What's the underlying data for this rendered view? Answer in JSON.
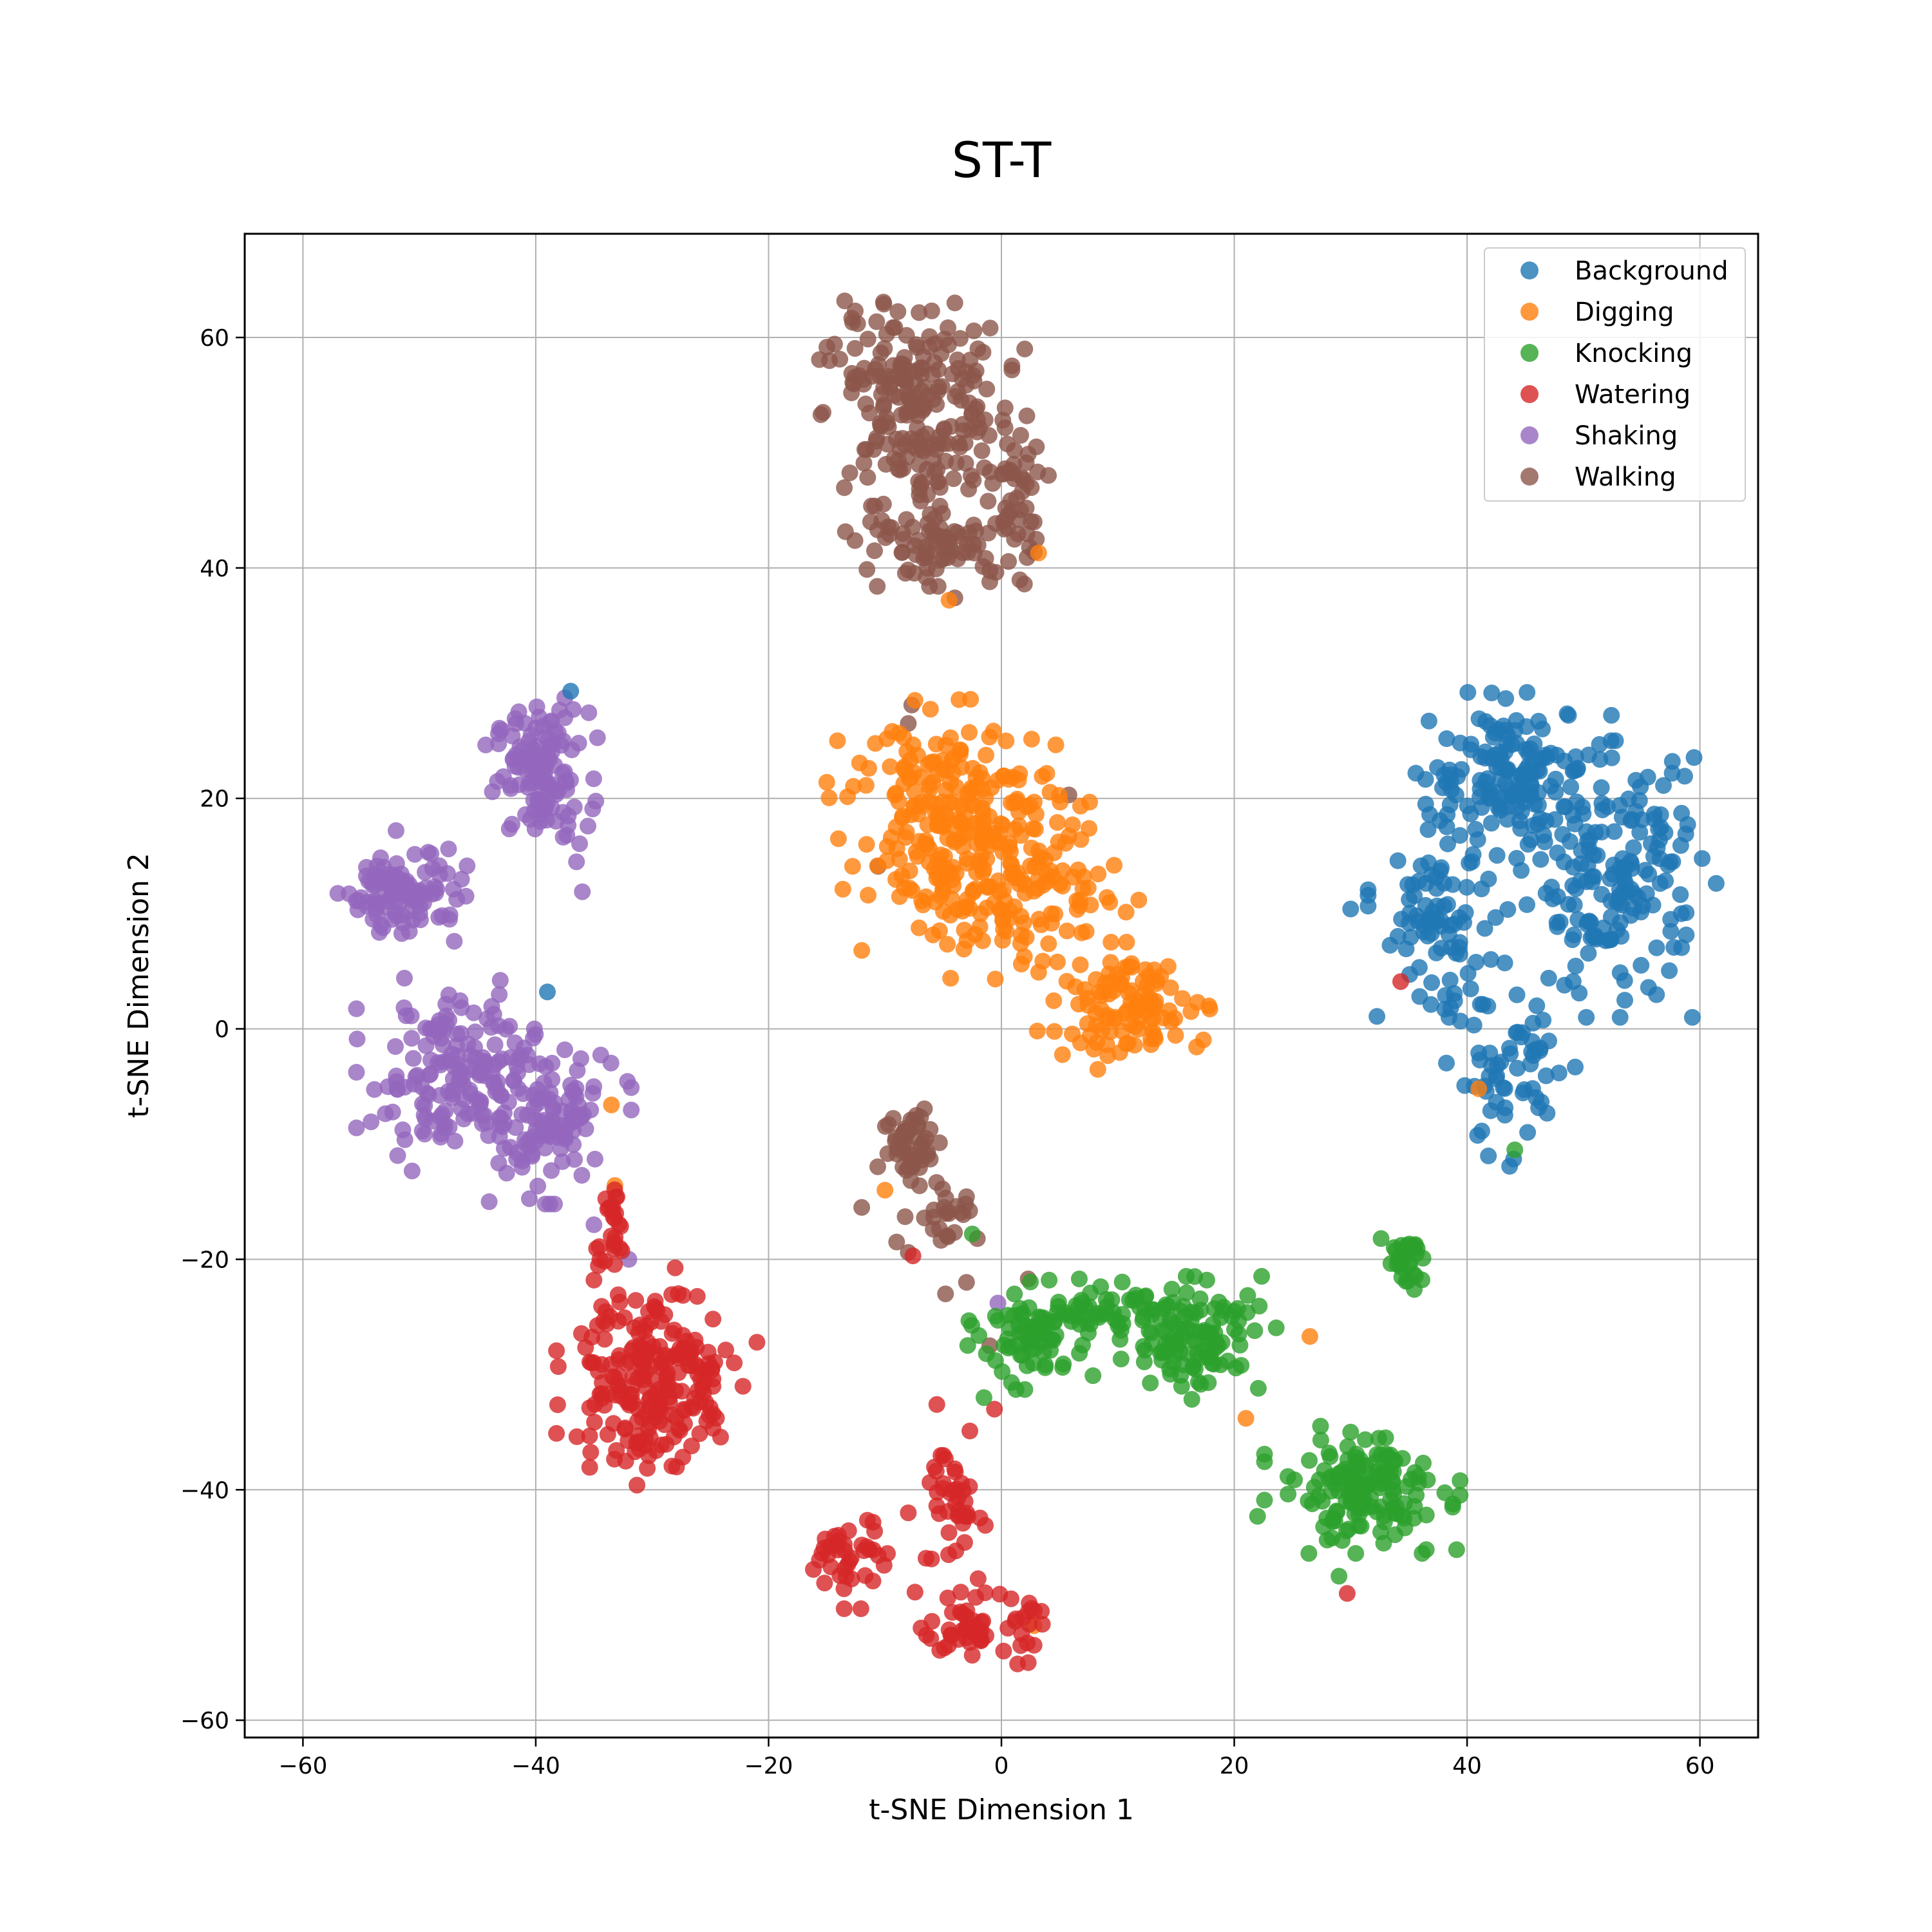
{
  "chart_data": {
    "type": "scatter",
    "title": "ST-T",
    "xlabel": "t-SNE Dimension 1",
    "ylabel": "t-SNE Dimension 2",
    "xlim": [
      -65,
      65
    ],
    "ylim": [
      -61.5,
      69
    ],
    "xticks": [
      -60,
      -40,
      -20,
      0,
      20,
      40,
      60
    ],
    "yticks": [
      -60,
      -40,
      -20,
      0,
      20,
      40,
      60
    ],
    "grid": true,
    "legend_position": "top-right",
    "series": [
      {
        "name": "Background",
        "color": "#1f77b4",
        "clusters": [
          {
            "cx": 44,
            "cy": 22,
            "sx": 3.5,
            "sy": 3,
            "n": 150
          },
          {
            "cx": 53,
            "cy": 13,
            "sx": 3.5,
            "sy": 5,
            "n": 170
          },
          {
            "cx": 37.5,
            "cy": 9,
            "sx": 2.5,
            "sy": 4,
            "n": 90
          },
          {
            "cx": 44,
            "cy": -4,
            "sx": 2.5,
            "sy": 3.5,
            "n": 60
          }
        ],
        "points": [
          [
            -37,
            29.3
          ],
          [
            -39,
            3.2
          ],
          [
            44,
            -11.3
          ],
          [
            30,
            10.4
          ]
        ]
      },
      {
        "name": "Digging",
        "color": "#ff7f0e",
        "clusters": [
          {
            "cx": -4,
            "cy": 19,
            "sx": 4.5,
            "sy": 4,
            "n": 200
          },
          {
            "cx": 1,
            "cy": 12,
            "sx": 4.5,
            "sy": 3.2,
            "n": 140
          },
          {
            "cx": 11,
            "cy": 2,
            "sx": 3.3,
            "sy": 2.3,
            "n": 110
          }
        ],
        "points": [
          [
            3.2,
            41.3
          ],
          [
            -12,
            6.8
          ],
          [
            -15,
            21.4
          ],
          [
            -14,
            16.5
          ],
          [
            41,
            -5.2
          ],
          [
            -33.5,
            -6.6
          ],
          [
            -33.2,
            -13.6
          ],
          [
            -10,
            -14
          ],
          [
            2.8,
            -51.8
          ],
          [
            21,
            -33.8
          ],
          [
            26.5,
            -26.7
          ],
          [
            -4.5,
            37.2
          ]
        ]
      },
      {
        "name": "Knocking",
        "color": "#2ca02c",
        "clusters": [
          {
            "cx": 3,
            "cy": -26.5,
            "sx": 2.5,
            "sy": 2,
            "n": 80
          },
          {
            "cx": 10,
            "cy": -24.5,
            "sx": 3.5,
            "sy": 1.2,
            "n": 50
          },
          {
            "cx": 17,
            "cy": -27,
            "sx": 2.8,
            "sy": 2.3,
            "n": 100
          },
          {
            "cx": 31,
            "cy": -40,
            "sx": 3.5,
            "sy": 2.3,
            "n": 150
          },
          {
            "cx": 34.5,
            "cy": -20.5,
            "sx": 0.9,
            "sy": 1,
            "n": 30
          }
        ],
        "points": [
          [
            44.1,
            -10.5
          ],
          [
            -2.5,
            -17.8
          ],
          [
            -1.5,
            -32
          ],
          [
            29,
            -47.5
          ],
          [
            22,
            -42.3
          ],
          [
            30,
            -35
          ]
        ]
      },
      {
        "name": "Watering",
        "color": "#d62728",
        "clusters": [
          {
            "cx": -31.5,
            "cy": -30,
            "sx": 2.8,
            "sy": 4,
            "n": 170
          },
          {
            "cx": -27,
            "cy": -31,
            "sx": 2,
            "sy": 3.5,
            "n": 50
          },
          {
            "cx": -33.5,
            "cy": -17,
            "sx": 0.7,
            "sy": 2,
            "n": 25
          },
          {
            "cx": -13,
            "cy": -46,
            "sx": 1.5,
            "sy": 1.8,
            "n": 40
          },
          {
            "cx": -3.5,
            "cy": -41,
            "sx": 1.3,
            "sy": 3.5,
            "n": 40
          },
          {
            "cx": -2,
            "cy": -52,
            "sx": 2.3,
            "sy": 1.3,
            "n": 60
          }
        ],
        "points": [
          [
            -21,
            -27.2
          ],
          [
            -35,
            -21.8
          ],
          [
            -8,
            -42
          ],
          [
            -6,
            -46
          ],
          [
            2.3,
            -55
          ],
          [
            -0.6,
            -33
          ],
          [
            34.3,
            4.1
          ],
          [
            29.7,
            -49
          ],
          [
            -7.6,
            -19.7
          ]
        ]
      },
      {
        "name": "Shaking",
        "color": "#9467bd",
        "clusters": [
          {
            "cx": -39.5,
            "cy": 22,
            "sx": 2,
            "sy": 2.8,
            "n": 120
          },
          {
            "cx": -51,
            "cy": 12,
            "sx": 2.5,
            "sy": 1.8,
            "n": 100
          },
          {
            "cx": -47,
            "cy": -4,
            "sx": 3.5,
            "sy": 3.5,
            "n": 170
          },
          {
            "cx": -39,
            "cy": -8,
            "sx": 3,
            "sy": 3,
            "n": 100
          }
        ],
        "points": [
          [
            -36,
            11.9
          ],
          [
            -47,
            7.6
          ],
          [
            -49,
            15.2
          ],
          [
            -52,
            17.2
          ],
          [
            -32,
            -20
          ],
          [
            -35,
            -17
          ],
          [
            -0.3,
            -23.8
          ],
          [
            -36.5,
            14.5
          ],
          [
            -44,
            -15
          ],
          [
            -37.5,
            27
          ]
        ]
      },
      {
        "name": "Walking",
        "color": "#8c564b",
        "clusters": [
          {
            "cx": -7.5,
            "cy": 57,
            "sx": 3.5,
            "sy": 2.8,
            "n": 120
          },
          {
            "cx": -7,
            "cy": 49,
            "sx": 3.5,
            "sy": 3.2,
            "n": 110
          },
          {
            "cx": -5,
            "cy": 42,
            "sx": 3.5,
            "sy": 1.5,
            "n": 70
          },
          {
            "cx": 1.5,
            "cy": 47,
            "sx": 1.2,
            "sy": 3.5,
            "n": 40
          },
          {
            "cx": -7.5,
            "cy": -10,
            "sx": 1.3,
            "sy": 1.8,
            "n": 50
          },
          {
            "cx": -5,
            "cy": -15.5,
            "sx": 1.5,
            "sy": 1.5,
            "n": 25
          }
        ],
        "points": [
          [
            -4,
            63
          ],
          [
            -15.5,
            53.3
          ],
          [
            2,
            59
          ],
          [
            3,
            42.5
          ],
          [
            -8,
            -19.4
          ],
          [
            -9,
            -18.5
          ],
          [
            -4.8,
            -23
          ],
          [
            -3,
            -22
          ],
          [
            2.3,
            -21.7
          ],
          [
            -1,
            -27.5
          ],
          [
            -10.6,
            14.1
          ],
          [
            5.8,
            20.3
          ],
          [
            -7.7,
            28.1
          ],
          [
            -8,
            26.5
          ],
          [
            -12,
            -15.5
          ],
          [
            -4,
            37.4
          ],
          [
            -1,
            38.8
          ]
        ]
      }
    ]
  }
}
